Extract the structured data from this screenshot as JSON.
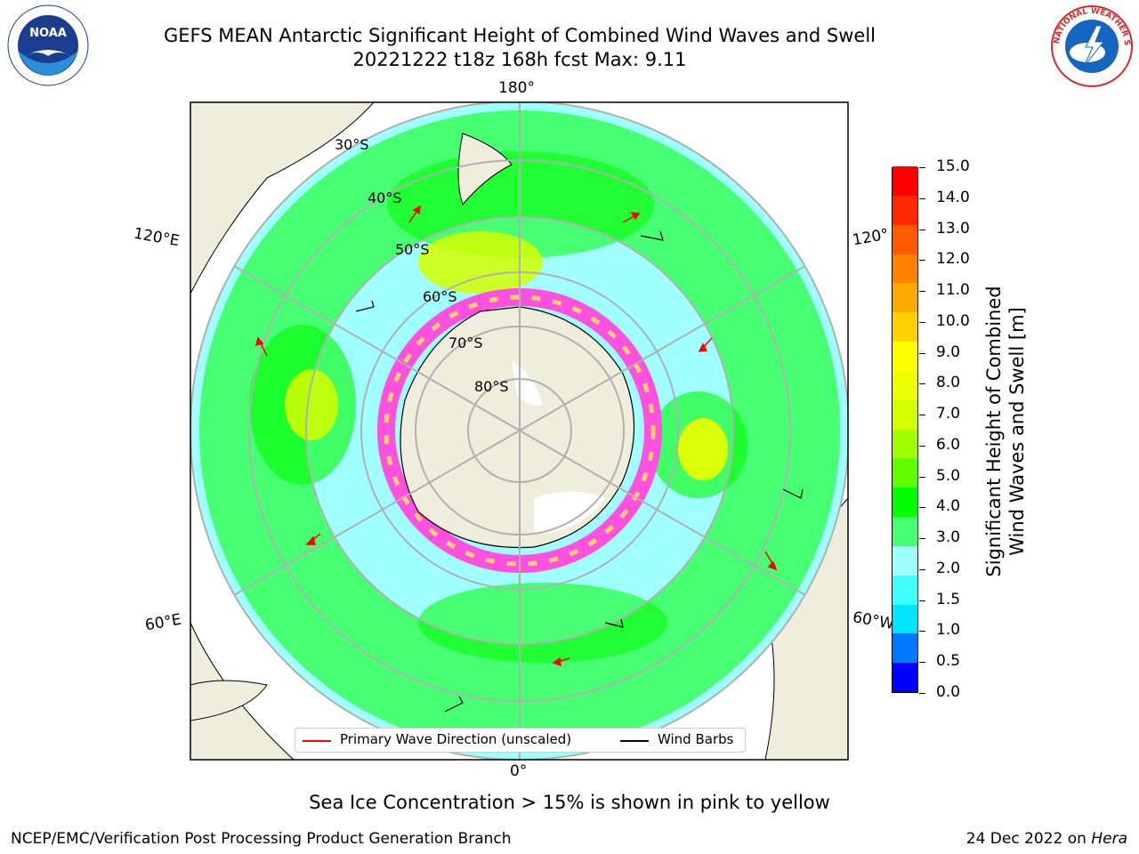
{
  "header": {
    "title_line1": "GEFS MEAN Antarctic Significant Height of Combined Wind Waves and Swell",
    "title_line2": "20221222 t18z 168h fcst   Max: 9.11"
  },
  "logos": {
    "noaa_text": "NOAA",
    "nws_text": "NATIONAL WEATHER SERVICE"
  },
  "map": {
    "longitude_labels": [
      "180°",
      "120°E",
      "120°",
      "60°E",
      "60°W",
      "0°"
    ],
    "latitude_labels": [
      "30°S",
      "40°S",
      "50°S",
      "60°S",
      "70°S",
      "80°S"
    ]
  },
  "legend": {
    "primary_wave": "Primary Wave Direction (unscaled)",
    "wind_barbs": "Wind Barbs",
    "wave_color": "#ff0000",
    "barb_color": "#000000"
  },
  "colorbar": {
    "title_line1": "Significant Height of Combined",
    "title_line2": "Wind Waves and Swell [m]",
    "labels": [
      "15.0",
      "14.0",
      "13.0",
      "12.0",
      "11.0",
      "10.0",
      "9.0",
      "8.0",
      "7.0",
      "6.0",
      "5.0",
      "4.0",
      "3.0",
      "2.0",
      "1.5",
      "1.0",
      "0.5",
      "0.0"
    ],
    "colors": [
      "#0000ff",
      "#0078ff",
      "#00e6ff",
      "#40ffff",
      "#a0ffff",
      "#46ff73",
      "#00ff00",
      "#60ff00",
      "#a0ff00",
      "#d4ff00",
      "#eeff00",
      "#ffff00",
      "#ffd200",
      "#ffaa00",
      "#ff8200",
      "#ff5a00",
      "#ff2800",
      "#ff0000"
    ]
  },
  "footer": {
    "sea_ice_note": "Sea Ice Concentration > 15% is shown in pink to yellow",
    "branch": "NCEP/EMC/Verification Post Processing Product Generation Branch",
    "date_text": "24 Dec 2022 on ",
    "machine": "Hera"
  }
}
